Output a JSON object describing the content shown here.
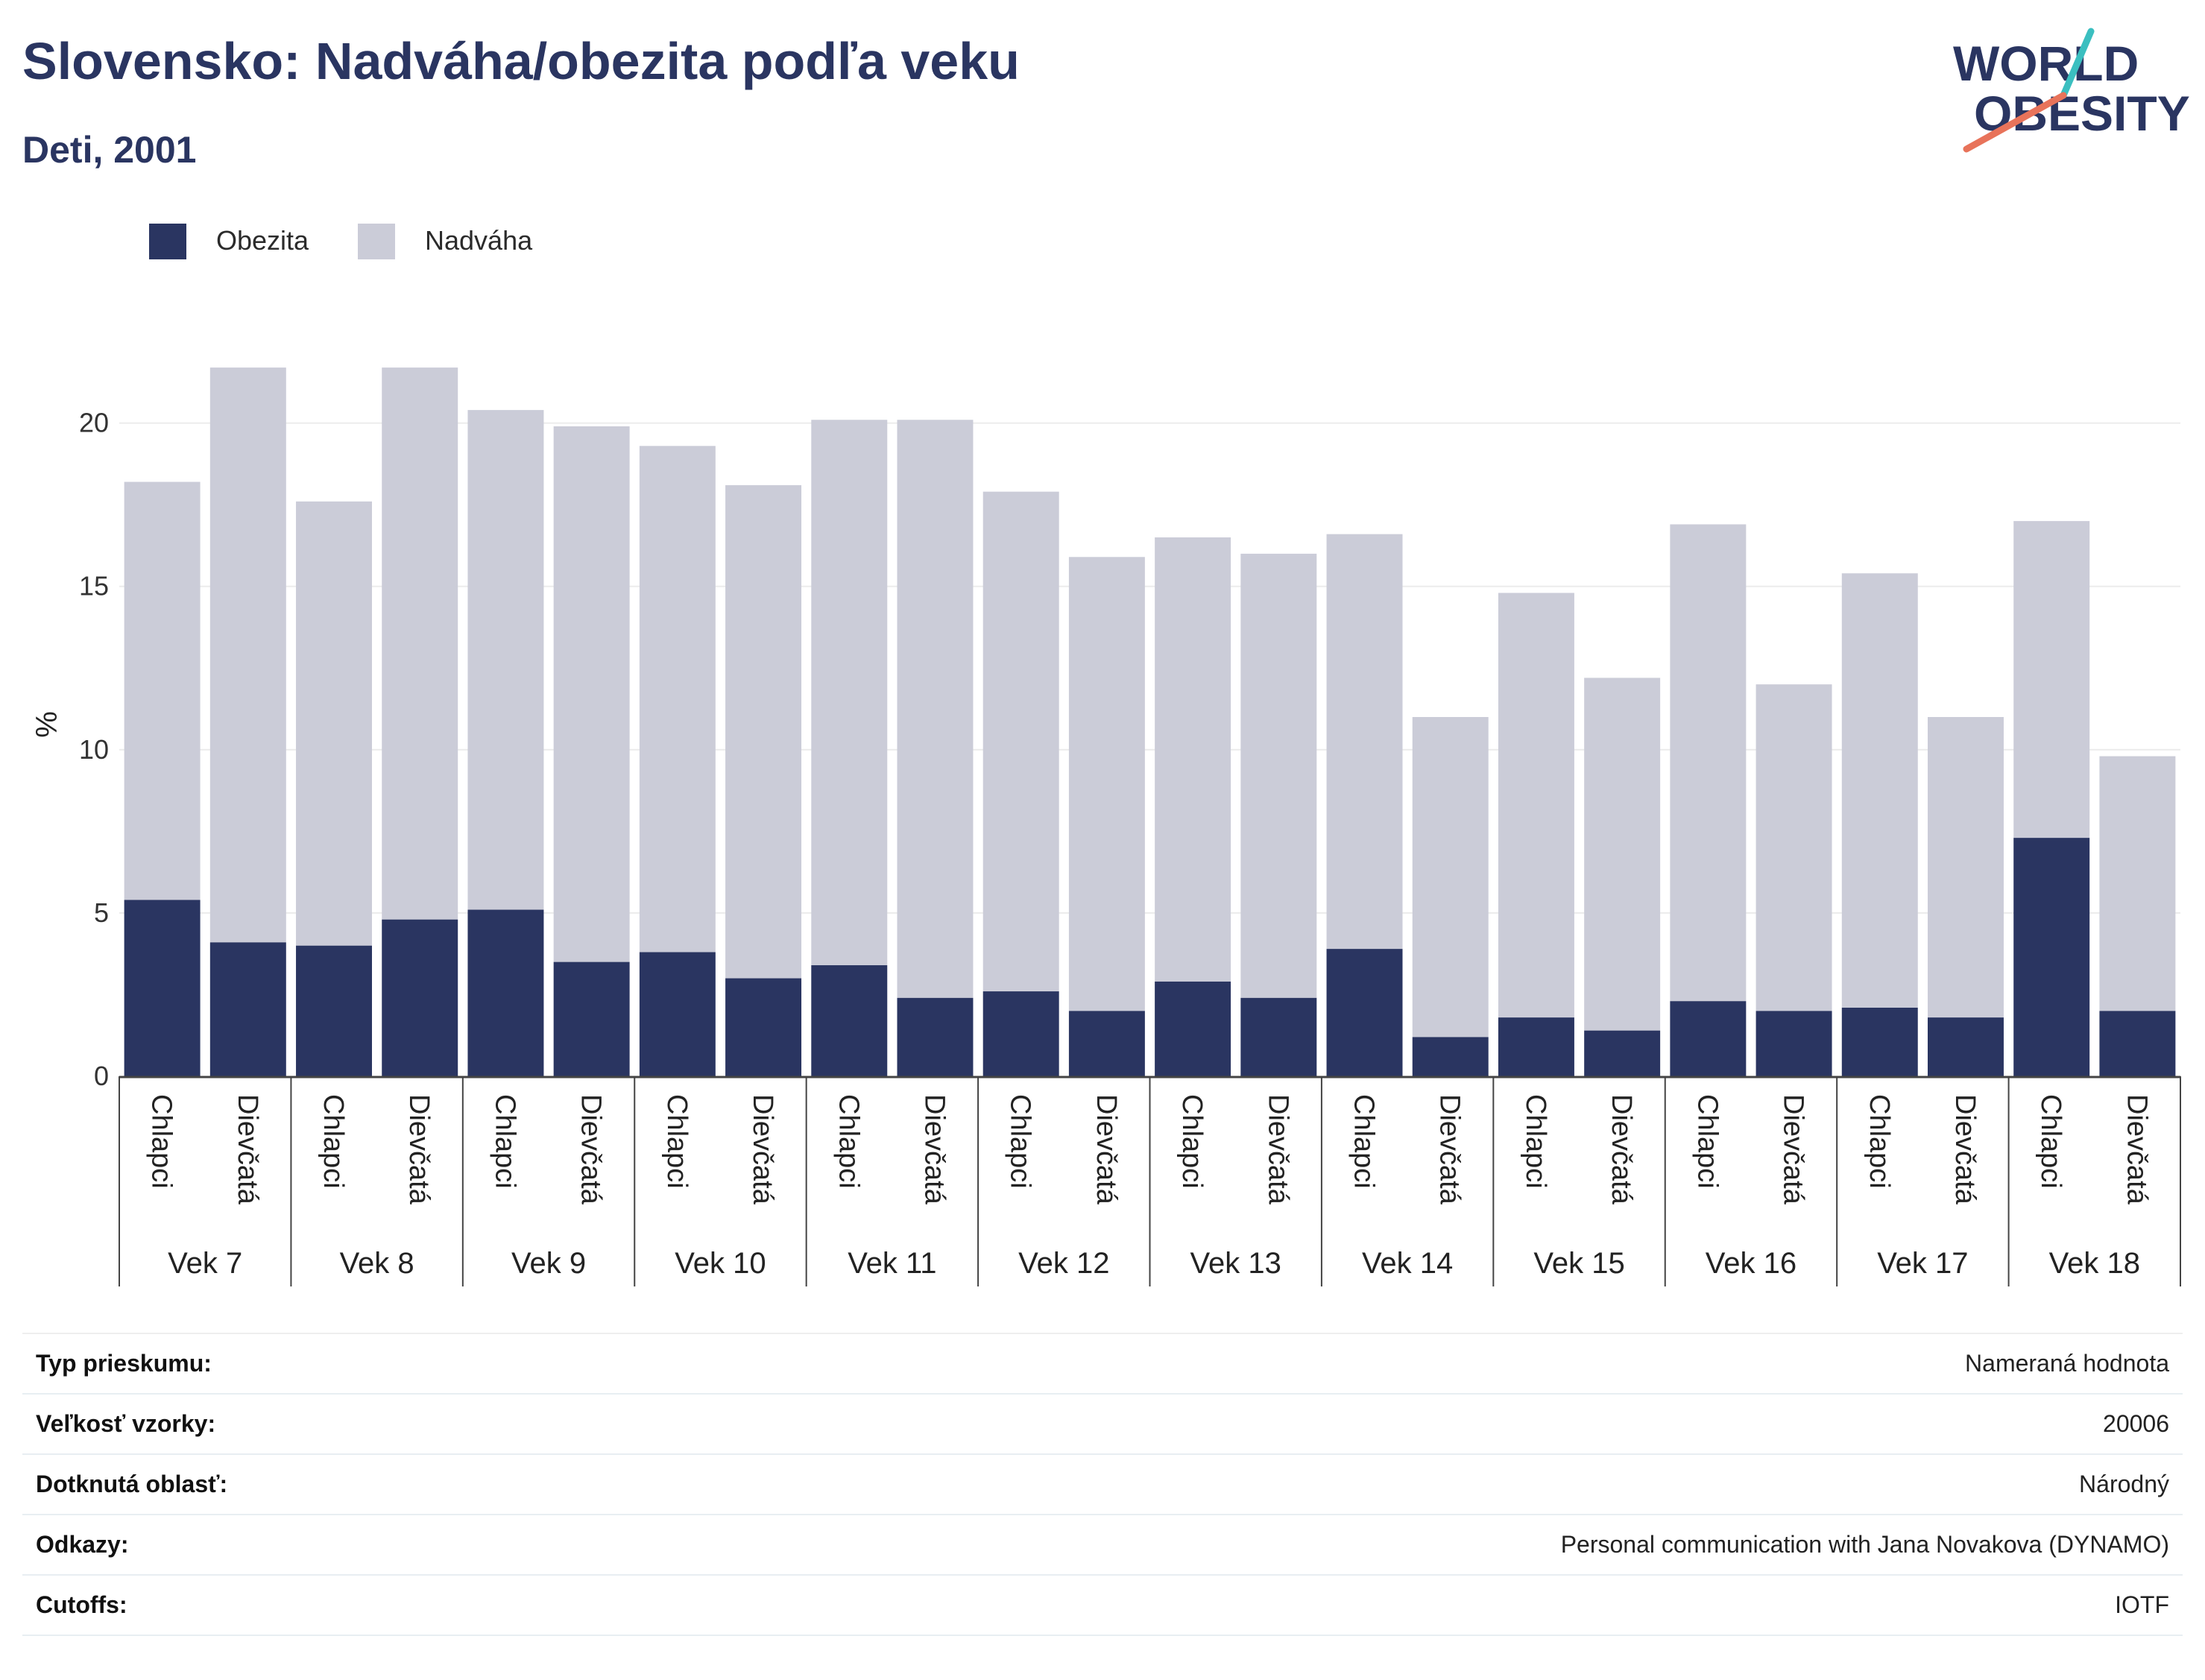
{
  "header": {
    "title": "Slovensko: Nadváha/obezita podľa veku",
    "subtitle": "Deti, 2001"
  },
  "logo": {
    "line1": "WORLD",
    "line2": "OBESITY",
    "accent_teal": "#3bbfc0",
    "accent_coral": "#e8735a"
  },
  "legend": {
    "items": [
      {
        "label": "Obezita",
        "color": "#2a3561"
      },
      {
        "label": "Nadváha",
        "color": "#cbccd8"
      }
    ]
  },
  "chart_data": {
    "type": "bar",
    "stacked": true,
    "ylabel": "%",
    "ylim": [
      0,
      22
    ],
    "yticks": [
      0,
      5,
      10,
      15,
      20
    ],
    "grid": true,
    "legend_position": "top-left",
    "groups": [
      "Vek 7",
      "Vek 8",
      "Vek 9",
      "Vek 10",
      "Vek 11",
      "Vek 12",
      "Vek 13",
      "Vek 14",
      "Vek 15",
      "Vek 16",
      "Vek 17",
      "Vek 18"
    ],
    "subcategories": [
      "Chlapci",
      "Dievčatá"
    ],
    "series": [
      {
        "name": "Obezita",
        "color": "#2a3561",
        "values": [
          5.4,
          4.1,
          4.0,
          4.8,
          5.1,
          3.5,
          3.8,
          3.0,
          3.4,
          2.4,
          2.6,
          2.0,
          2.9,
          2.4,
          3.9,
          1.2,
          1.8,
          1.4,
          2.3,
          2.0,
          2.1,
          1.8,
          7.3,
          2.0
        ]
      },
      {
        "name": "Nadváha",
        "color": "#cbccd8",
        "values": [
          12.8,
          17.6,
          13.6,
          16.9,
          15.3,
          16.4,
          15.5,
          15.1,
          16.7,
          17.7,
          15.3,
          13.9,
          13.6,
          13.6,
          12.7,
          9.8,
          13.0,
          10.8,
          14.6,
          10.0,
          13.3,
          9.2,
          9.7,
          7.8
        ]
      }
    ]
  },
  "info_table": [
    {
      "key": "Typ prieskumu:",
      "value": "Nameraná hodnota"
    },
    {
      "key": "Veľkosť vzorky:",
      "value": "20006"
    },
    {
      "key": "Dotknutá oblasť:",
      "value": "Národný"
    },
    {
      "key": "Odkazy:",
      "value": "Personal communication with Jana Novakova (DYNAMO)"
    },
    {
      "key": "Cutoffs:",
      "value": "IOTF"
    }
  ]
}
